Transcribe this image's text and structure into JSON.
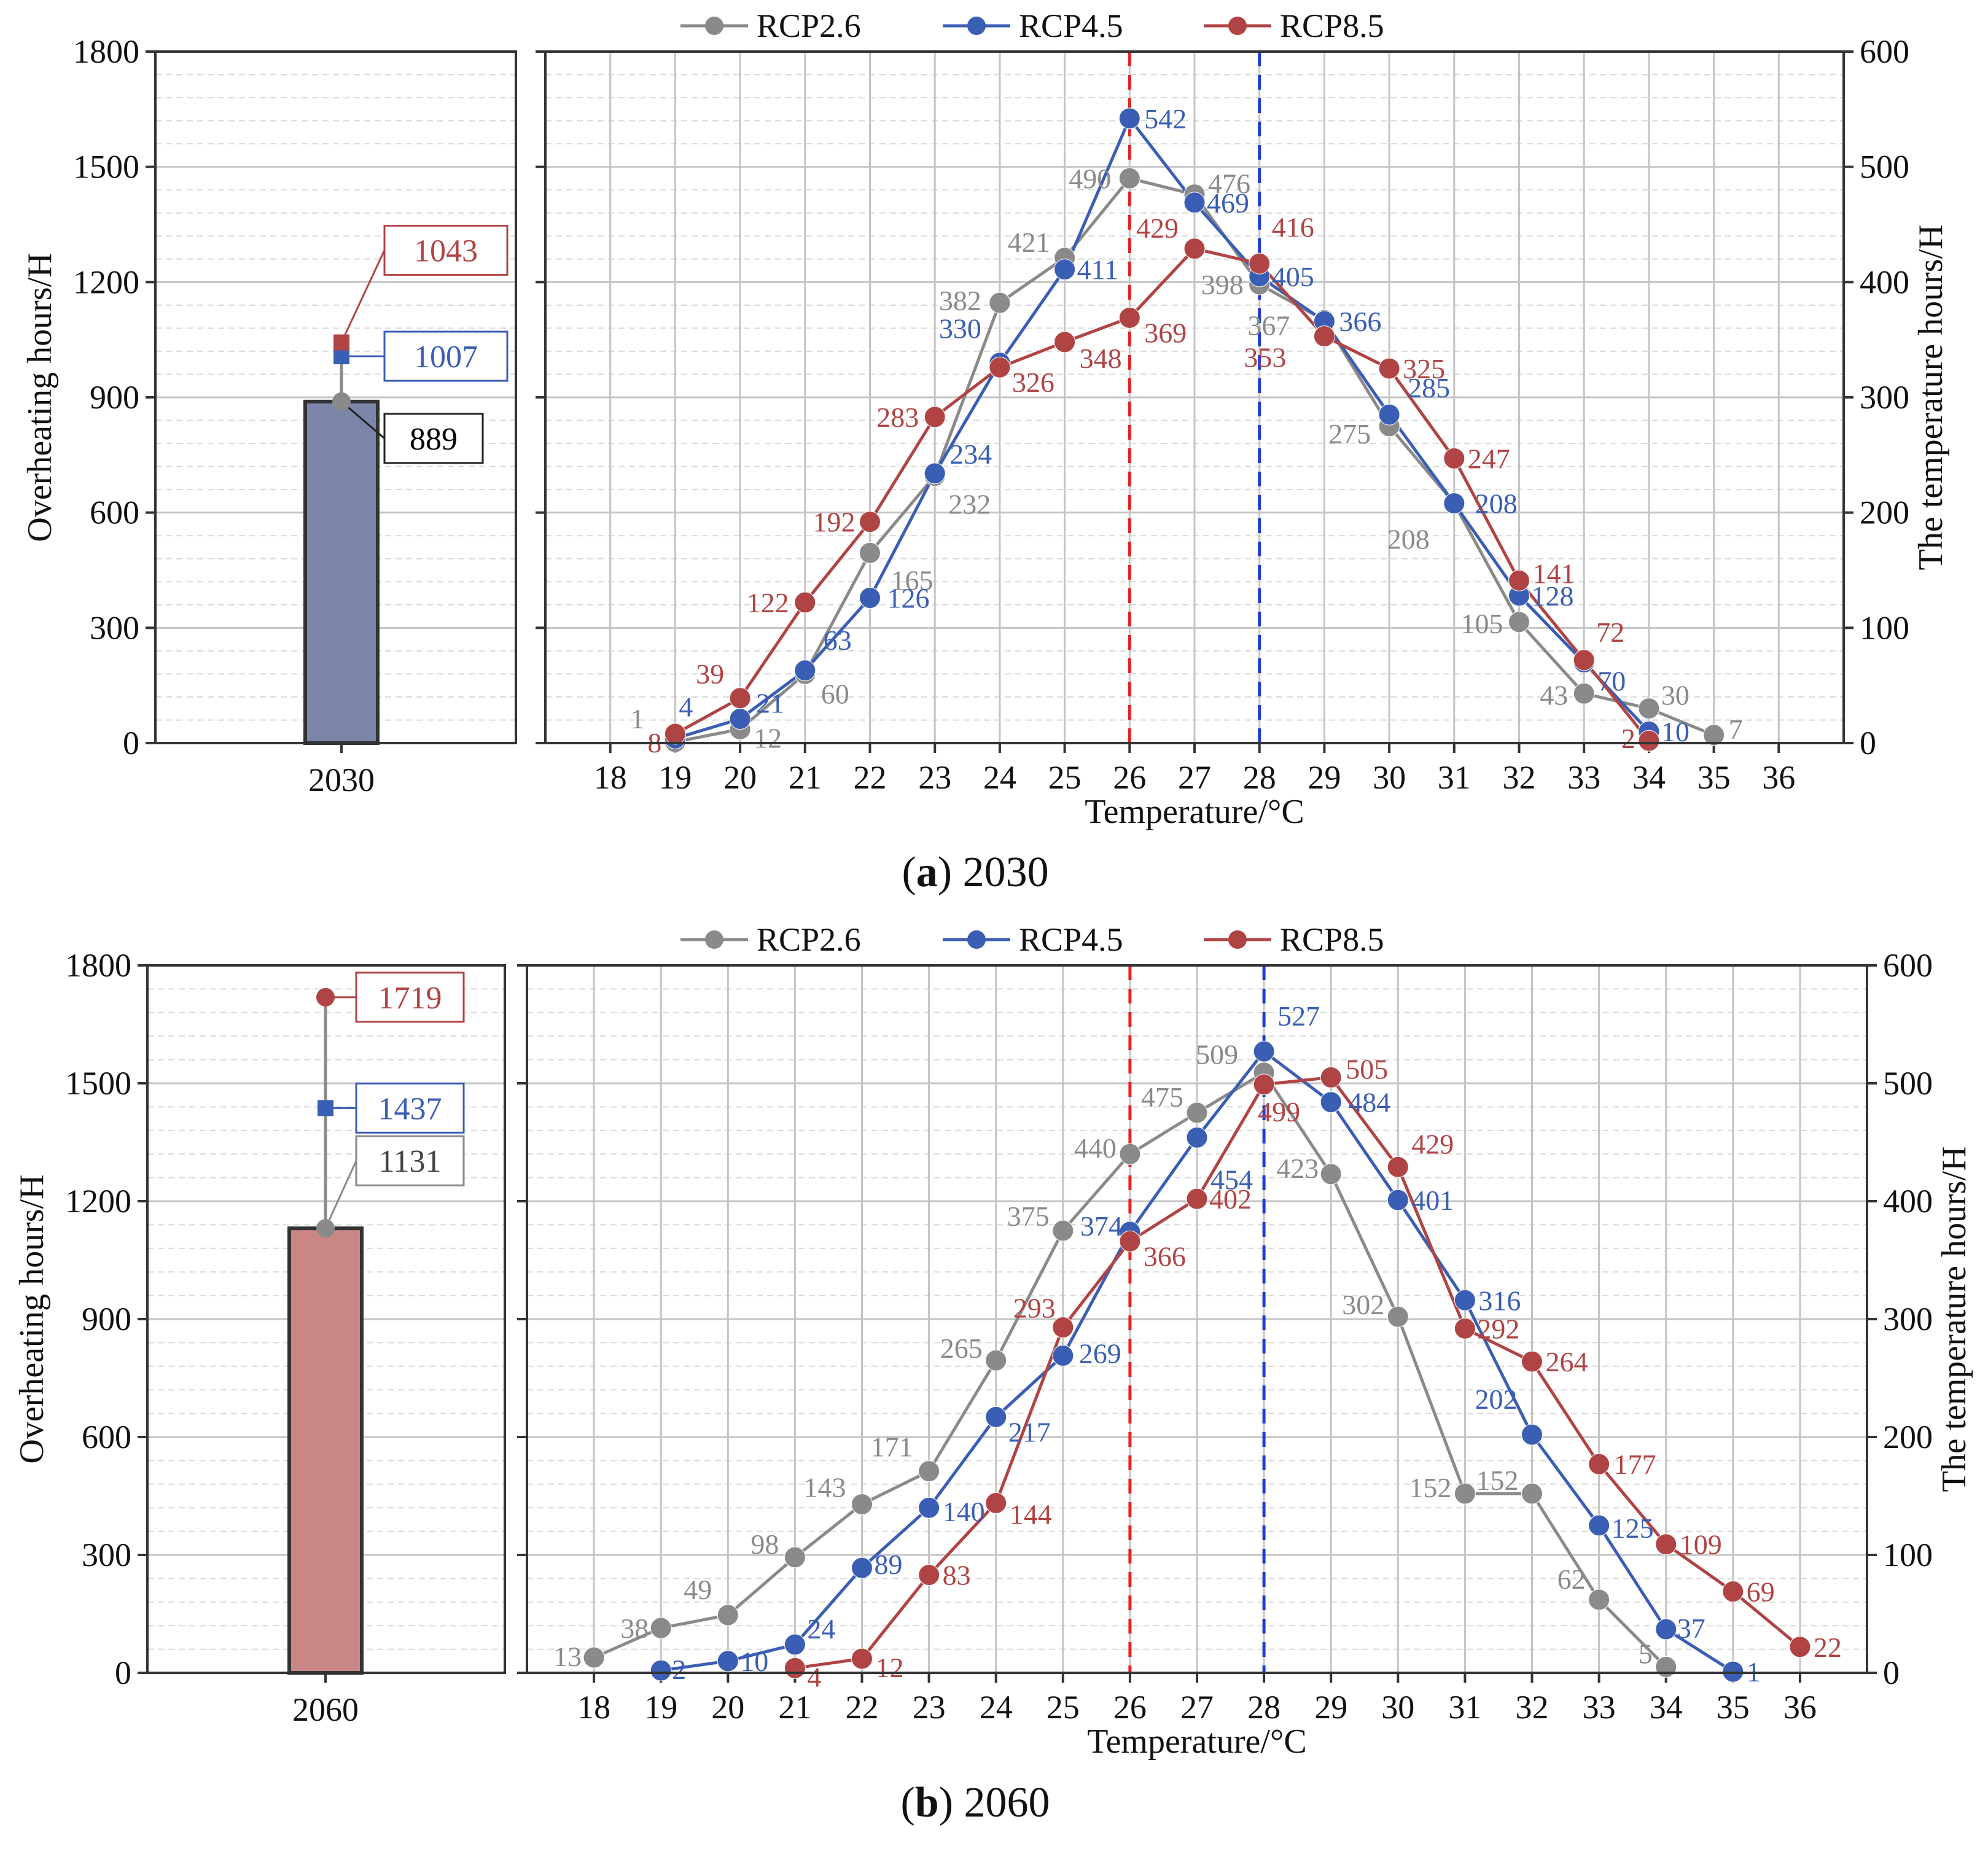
{
  "colors": {
    "RCP2.6": "#8a8a8a",
    "RCP4.5": "#3a5eb4",
    "RCP8.5": "#b04444",
    "bar_2030": "#7c86aa",
    "bar_2060": "#c98684",
    "vline_red": "#e52222",
    "vline_blue": "#1f3cd6"
  },
  "chart_data": [
    {
      "panel": "a",
      "caption_letter": "a",
      "caption_text": " 2030",
      "legend": [
        "RCP2.6",
        "RCP4.5",
        "RCP8.5"
      ],
      "left": {
        "type": "bar",
        "category": "2030",
        "ylabel": "Overheating hours/H",
        "ylim": [
          0,
          1800
        ],
        "yticks": [
          0,
          300,
          600,
          900,
          1200,
          1500,
          1800
        ],
        "bar_value": 889,
        "points": [
          {
            "series": "RCP2.6",
            "value": 889,
            "marker": "circle",
            "label": "889"
          },
          {
            "series": "RCP4.5",
            "value": 1007,
            "marker": "square",
            "label": "1007"
          },
          {
            "series": "RCP8.5",
            "value": 1043,
            "marker": "square",
            "label": "1043"
          }
        ]
      },
      "right": {
        "type": "line",
        "xlabel": "Temperature/°C",
        "ylabel": "The temperature hours/H",
        "ylim": [
          0,
          600
        ],
        "yticks": [
          0,
          100,
          200,
          300,
          400,
          500,
          600
        ],
        "categories": [
          "18",
          "19",
          "20",
          "21",
          "22",
          "23",
          "24",
          "25",
          "26",
          "27",
          "28",
          "29",
          "30",
          "31",
          "32",
          "33",
          "34",
          "35",
          "36"
        ],
        "vlines": [
          {
            "x": 26,
            "color": "red"
          },
          {
            "x": 28,
            "color": "blue"
          }
        ],
        "series": [
          {
            "name": "RCP2.6",
            "x": [
              19,
              20,
              21,
              22,
              23,
              24,
              25,
              26,
              27,
              28,
              29,
              30,
              31,
              32,
              33,
              34,
              35
            ],
            "values": [
              1,
              12,
              60,
              165,
              232,
              382,
              421,
              490,
              476,
              398,
              367,
              275,
              208,
              105,
              43,
              30,
              7
            ]
          },
          {
            "name": "RCP4.5",
            "x": [
              19,
              20,
              21,
              22,
              23,
              24,
              25,
              26,
              27,
              28,
              29,
              30,
              31,
              32,
              33,
              34
            ],
            "values": [
              4,
              21,
              63,
              126,
              234,
              330,
              411,
              542,
              469,
              405,
              366,
              285,
              208,
              128,
              70,
              10
            ]
          },
          {
            "name": "RCP8.5",
            "x": [
              19,
              20,
              21,
              22,
              23,
              24,
              25,
              26,
              27,
              28,
              29,
              30,
              31,
              32,
              33,
              34
            ],
            "values": [
              8,
              39,
              122,
              192,
              283,
              326,
              348,
              369,
              429,
              416,
              353,
              325,
              247,
              141,
              72,
              2
            ]
          }
        ]
      }
    },
    {
      "panel": "b",
      "caption_letter": "b",
      "caption_text": " 2060",
      "legend": [
        "RCP2.6",
        "RCP4.5",
        "RCP8.5"
      ],
      "left": {
        "type": "bar",
        "category": "2060",
        "ylabel": "Overheating hours/H",
        "ylim": [
          0,
          1800
        ],
        "yticks": [
          0,
          300,
          600,
          900,
          1200,
          1500,
          1800
        ],
        "bar_value": 1131,
        "points": [
          {
            "series": "RCP2.6",
            "value": 1131,
            "marker": "circle",
            "label": "1131"
          },
          {
            "series": "RCP4.5",
            "value": 1437,
            "marker": "square",
            "label": "1437"
          },
          {
            "series": "RCP8.5",
            "value": 1719,
            "marker": "circle",
            "label": "1719"
          }
        ]
      },
      "right": {
        "type": "line",
        "xlabel": "Temperature/°C",
        "ylabel": "The temperature hours/H",
        "ylim": [
          0,
          600
        ],
        "yticks": [
          0,
          100,
          200,
          300,
          400,
          500,
          600
        ],
        "categories": [
          "18",
          "19",
          "20",
          "21",
          "22",
          "23",
          "24",
          "25",
          "26",
          "27",
          "28",
          "29",
          "30",
          "31",
          "32",
          "33",
          "34",
          "35",
          "36"
        ],
        "vlines": [
          {
            "x": 26,
            "color": "red"
          },
          {
            "x": 28,
            "color": "blue"
          }
        ],
        "series": [
          {
            "name": "RCP2.6",
            "x": [
              18,
              19,
              20,
              21,
              22,
              23,
              24,
              25,
              26,
              27,
              28,
              29,
              30,
              31,
              32,
              33,
              34
            ],
            "values": [
              13,
              38,
              49,
              98,
              143,
              171,
              265,
              375,
              440,
              475,
              509,
              423,
              302,
              152,
              152,
              62,
              5
            ]
          },
          {
            "name": "RCP4.5",
            "x": [
              19,
              20,
              21,
              22,
              23,
              24,
              25,
              26,
              27,
              28,
              29,
              30,
              31,
              32,
              33,
              34,
              35
            ],
            "values": [
              2,
              10,
              24,
              89,
              140,
              217,
              269,
              374,
              454,
              527,
              484,
              401,
              316,
              202,
              125,
              37,
              1
            ]
          },
          {
            "name": "RCP8.5",
            "x": [
              21,
              22,
              23,
              24,
              25,
              26,
              27,
              28,
              29,
              30,
              31,
              32,
              33,
              34,
              35,
              36
            ],
            "values": [
              4,
              12,
              83,
              144,
              293,
              366,
              402,
              499,
              505,
              429,
              292,
              264,
              177,
              109,
              69,
              22
            ]
          }
        ]
      }
    }
  ]
}
